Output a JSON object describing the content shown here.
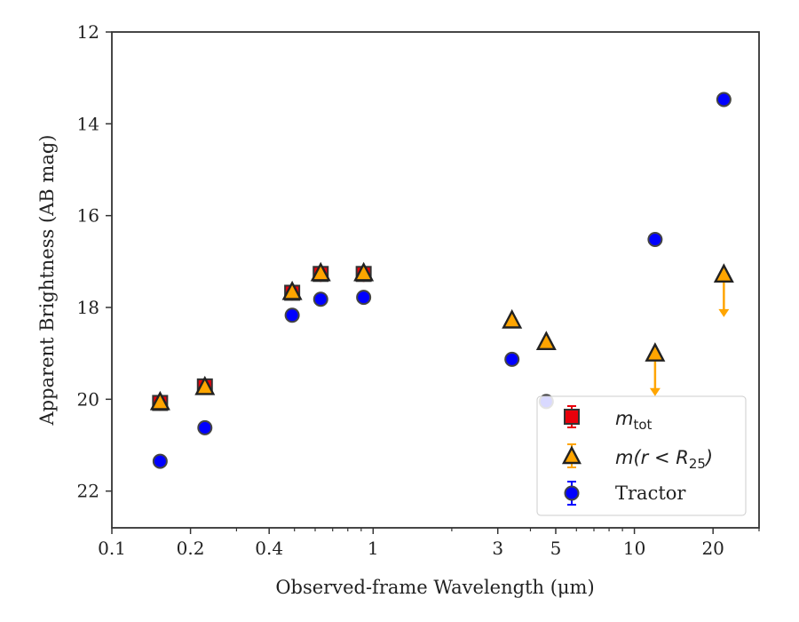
{
  "chart_data": {
    "type": "scatter",
    "xlabel": "Observed-frame Wavelength (μm)",
    "ylabel": "Apparent Brightness (AB mag)",
    "xscale": "log",
    "xlim": [
      0.1,
      30
    ],
    "ylim": [
      22.8,
      12
    ],
    "y_inverted": true,
    "xticks": [
      {
        "value": 0.1,
        "label": "0.1"
      },
      {
        "value": 0.2,
        "label": "0.2"
      },
      {
        "value": 0.4,
        "label": "0.4"
      },
      {
        "value": 1,
        "label": "1"
      },
      {
        "value": 3,
        "label": "3"
      },
      {
        "value": 5,
        "label": "5"
      },
      {
        "value": 10,
        "label": "10"
      },
      {
        "value": 20,
        "label": "20"
      }
    ],
    "yticks": [
      12,
      14,
      16,
      18,
      20,
      22
    ],
    "legend_position": "lower-right",
    "series": [
      {
        "name": "m_tot",
        "marker": "square",
        "color": "#e8000b",
        "edge_color": "#333333",
        "points": [
          {
            "x": 0.153,
            "y": 20.08
          },
          {
            "x": 0.227,
            "y": 19.72
          },
          {
            "x": 0.49,
            "y": 17.68
          },
          {
            "x": 0.63,
            "y": 17.27
          },
          {
            "x": 0.92,
            "y": 17.27
          }
        ]
      },
      {
        "name": "m(r < R25)",
        "marker": "triangle",
        "color": "#ffa500",
        "edge_color": "#222222",
        "points": [
          {
            "x": 0.153,
            "y": 20.08
          },
          {
            "x": 0.227,
            "y": 19.75
          },
          {
            "x": 0.49,
            "y": 17.68
          },
          {
            "x": 0.63,
            "y": 17.27
          },
          {
            "x": 0.92,
            "y": 17.27
          },
          {
            "x": 3.4,
            "y": 18.3
          },
          {
            "x": 4.6,
            "y": 18.77
          },
          {
            "x": 12.0,
            "y": 19.02,
            "upper_limit": true
          },
          {
            "x": 22.0,
            "y": 17.3,
            "upper_limit": true
          }
        ]
      },
      {
        "name": "Tractor",
        "marker": "circle",
        "color": "#0000ff",
        "edge_color": "#444444",
        "points": [
          {
            "x": 0.153,
            "y": 21.35
          },
          {
            "x": 0.227,
            "y": 20.62
          },
          {
            "x": 0.49,
            "y": 18.17
          },
          {
            "x": 0.63,
            "y": 17.82
          },
          {
            "x": 0.92,
            "y": 17.78
          },
          {
            "x": 3.4,
            "y": 19.13
          },
          {
            "x": 4.6,
            "y": 20.05
          },
          {
            "x": 12.0,
            "y": 16.52
          },
          {
            "x": 22.0,
            "y": 13.47
          }
        ]
      }
    ],
    "legend": {
      "m_tot": {
        "base": "m",
        "sub": "tot"
      },
      "m_r": {
        "text": "m(r < R",
        "sub": "25",
        "close": ")"
      },
      "tractor": "Tractor"
    }
  }
}
